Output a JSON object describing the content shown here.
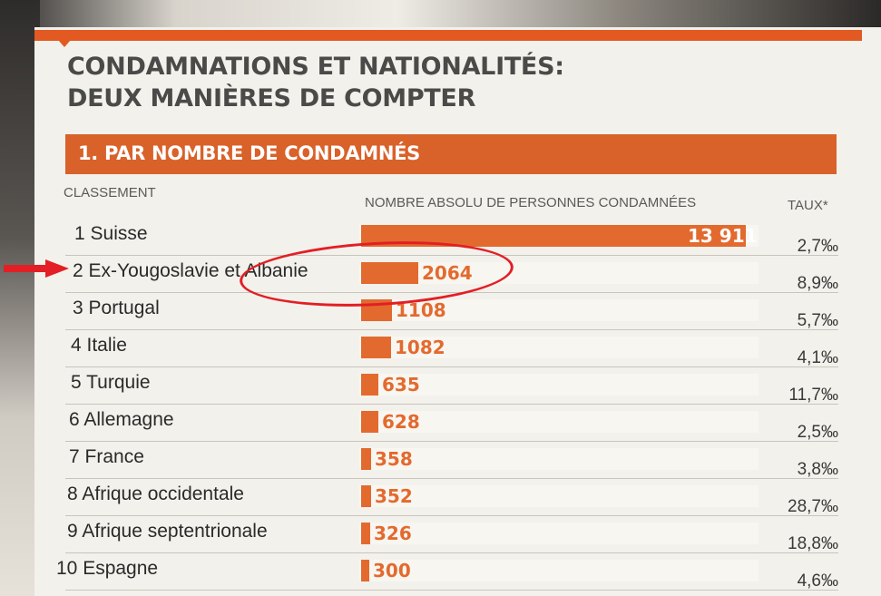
{
  "title_lines": [
    "CONDAMNATIONS ET NATIONALITÉS:",
    "DEUX MANIÈRES DE COMPTER"
  ],
  "section_title": "1. PAR NOMBRE DE CONDAMNÉS",
  "columns": {
    "rank": "CLASSEMENT",
    "absolute": "NOMBRE ABSOLU DE PERSONNES CONDAMNÉES",
    "rate": "TAUX*"
  },
  "colors": {
    "accent": "#e25a22",
    "bar": "#e36a2e",
    "annotation": "#e31e24"
  },
  "highlighted_row": 2,
  "chart_data": {
    "type": "bar",
    "orientation": "horizontal",
    "title": "CONDAMNATIONS ET NATIONALITÉS: DEUX MANIÈRES DE COMPTER",
    "subtitle": "1. PAR NOMBRE DE CONDAMNÉS",
    "categories": [
      "1 Suisse",
      "2 Ex-Yougoslavie et Albanie",
      "3 Portugal",
      "4 Italie",
      "5 Turquie",
      "6 Allemagne",
      "7 France",
      "8 Afrique occidentale",
      "9 Afrique septentrionale",
      "10 Espagne"
    ],
    "values": [
      13911,
      2064,
      1108,
      1082,
      635,
      628,
      358,
      352,
      326,
      300
    ],
    "value_labels": [
      "13 911",
      "2064",
      "1108",
      "1082",
      "635",
      "628",
      "358",
      "352",
      "326",
      "300"
    ],
    "rates": [
      "2,7‰",
      "8,9‰",
      "5,7‰",
      "4,1‰",
      "11,7‰",
      "2,5‰",
      "3,8‰",
      "28,7‰",
      "18,8‰",
      "4,6‰"
    ],
    "xlabel": "NOMBRE ABSOLU DE PERSONNES CONDAMNÉES",
    "ylabel": "CLASSEMENT",
    "xlim": [
      0,
      13911
    ],
    "grid": false,
    "legend": "none"
  }
}
